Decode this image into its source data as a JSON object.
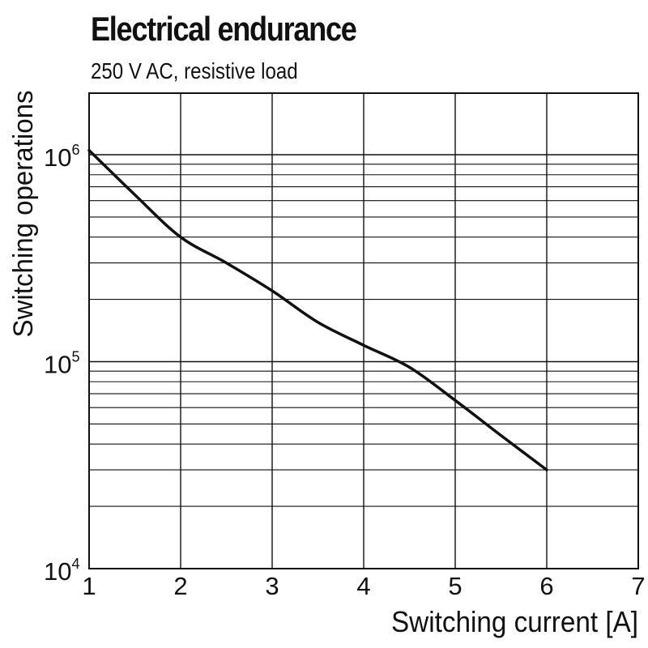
{
  "chart_data": {
    "type": "line",
    "title": "Electrical endurance",
    "subtitle": "250 V AC, resistive load",
    "xlabel": "Switching current [A]",
    "ylabel": "Switching operations",
    "xlim": [
      1,
      7
    ],
    "ylim": [
      10000,
      2000000
    ],
    "yscale": "log",
    "grid": true,
    "xticks": [
      "1",
      "2",
      "3",
      "4",
      "5",
      "6",
      "7"
    ],
    "yticks": [
      {
        "value": 10000,
        "base": "10",
        "exp": "4"
      },
      {
        "value": 100000,
        "base": "10",
        "exp": "5"
      },
      {
        "value": 1000000,
        "base": "10",
        "exp": "6"
      }
    ],
    "series": [
      {
        "name": "250 V AC, resistive load",
        "x": [
          1,
          1.5,
          2,
          2.5,
          3,
          3.5,
          4,
          4.5,
          5,
          5.5,
          6
        ],
        "y": [
          1050000,
          640000,
          400000,
          300000,
          220000,
          155000,
          120000,
          94000,
          65000,
          44000,
          30000
        ]
      }
    ]
  }
}
